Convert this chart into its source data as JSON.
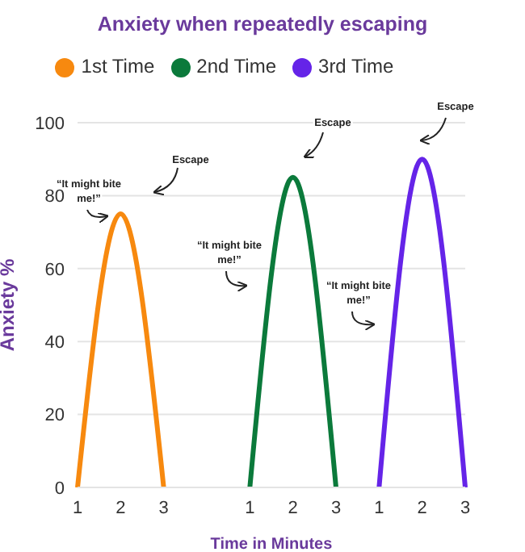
{
  "chart_data": {
    "type": "line",
    "title": "Anxiety when repeatedly escaping",
    "xlabel": "Time  in Minutes",
    "ylabel": "Anxiety %",
    "categories": [
      "1",
      "2",
      "3",
      null,
      "1",
      "2",
      "3",
      "1",
      "2",
      "3"
    ],
    "series": [
      {
        "name": "1st Time",
        "color": "#f7890f",
        "values": [
          0,
          75,
          0,
          null,
          null,
          null,
          null,
          null,
          null,
          null
        ]
      },
      {
        "name": "2nd Time",
        "color": "#0b7a3b",
        "values": [
          null,
          null,
          null,
          null,
          0,
          85,
          0,
          null,
          null,
          null
        ]
      },
      {
        "name": "3rd Time",
        "color": "#6524e8",
        "values": [
          null,
          null,
          null,
          null,
          null,
          null,
          null,
          0,
          90,
          0
        ]
      }
    ],
    "ylim": [
      0,
      100
    ],
    "yticks": [
      0,
      20,
      40,
      60,
      80,
      100
    ],
    "grid": "y",
    "legend": "top",
    "marker": "none",
    "line_style": "solid",
    "annotations": [
      "Escape",
      "Escape",
      "Escape",
      "“It might bite me!”",
      "“It might bite me!”",
      "“It might bite me!”"
    ]
  }
}
